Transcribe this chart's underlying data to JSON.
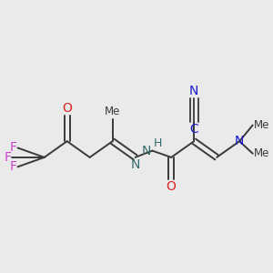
{
  "background_color": "#eaeaea",
  "bond_color": "#3a3a3a",
  "figsize": [
    3.0,
    3.0
  ],
  "dpi": 100,
  "F_color": "#cc44cc",
  "O_color": "#dd2222",
  "N_color_imine": "#336b6b",
  "N_color_blue": "#1a1acc",
  "C_color_blue": "#1a1acc",
  "text_color": "#3a3a3a",
  "xlim": [
    15,
    285
  ],
  "ylim": [
    55,
    245
  ]
}
